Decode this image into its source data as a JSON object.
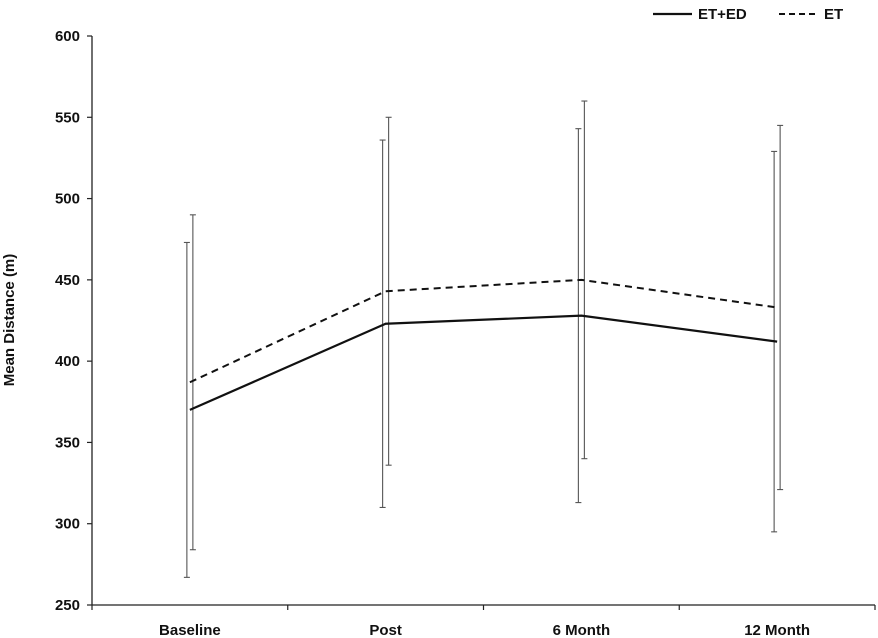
{
  "chart_data": {
    "type": "line",
    "title": "",
    "xlabel": "",
    "ylabel": "Mean Distance (m)",
    "categories": [
      "Baseline",
      "Post",
      "6 Month",
      "12 Month"
    ],
    "ylim": [
      250,
      600
    ],
    "yticks": [
      250,
      300,
      350,
      400,
      450,
      500,
      550,
      600
    ],
    "grid": false,
    "legend_position": "top-right",
    "series": [
      {
        "name": "ET+ED",
        "style": "solid",
        "color": "#111111",
        "values": [
          370,
          423,
          428,
          412
        ],
        "error_low": [
          267,
          310,
          313,
          295
        ],
        "error_high": [
          473,
          536,
          543,
          529
        ]
      },
      {
        "name": "ET",
        "style": "dashed",
        "color": "#111111",
        "values": [
          387,
          443,
          450,
          433
        ],
        "error_low": [
          284,
          336,
          340,
          321
        ],
        "error_high": [
          490,
          550,
          560,
          545
        ]
      }
    ]
  }
}
